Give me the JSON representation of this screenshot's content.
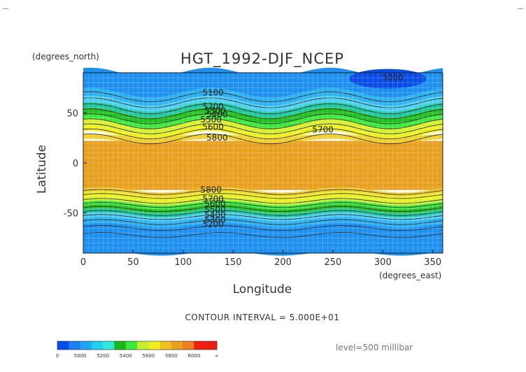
{
  "chart_data": {
    "type": "heatmap",
    "title": "HGT_1992-DJF_NCEP",
    "xlabel": "Longitude",
    "ylabel": "Latitude",
    "x_units": "(degrees_east)",
    "y_units": "(degrees_north)",
    "xlim": [
      0,
      360
    ],
    "ylim": [
      -90,
      90
    ],
    "x_ticks": [
      "0",
      "50",
      "100",
      "150",
      "200",
      "250",
      "300",
      "350"
    ],
    "y_ticks": [
      "50",
      "0",
      "-50"
    ],
    "grid": true,
    "footer": "CONTOUR INTERVAL = 5.000E+01",
    "level_label": "level=500 millibar",
    "contour_labels": [
      {
        "text": "5100",
        "lon": 130,
        "lat": 68
      },
      {
        "text": "5000",
        "lon": 310,
        "lat": 83
      },
      {
        "text": "5200",
        "lon": 130,
        "lat": 54
      },
      {
        "text": "5300",
        "lon": 132,
        "lat": 50
      },
      {
        "text": "5400",
        "lon": 134,
        "lat": 46
      },
      {
        "text": "5500",
        "lon": 128,
        "lat": 41
      },
      {
        "text": "5600",
        "lon": 130,
        "lat": 34
      },
      {
        "text": "5700",
        "lon": 240,
        "lat": 31
      },
      {
        "text": "5800",
        "lon": 134,
        "lat": 23
      },
      {
        "text": "5800",
        "lon": 128,
        "lat": -29
      },
      {
        "text": "5700",
        "lon": 130,
        "lat": -38
      },
      {
        "text": "5600",
        "lon": 132,
        "lat": -43
      },
      {
        "text": "5500",
        "lon": 132,
        "lat": -49
      },
      {
        "text": "5400",
        "lon": 132,
        "lat": -54
      },
      {
        "text": "5300",
        "lon": 132,
        "lat": -59
      },
      {
        "text": "5200",
        "lon": 130,
        "lat": -63
      }
    ],
    "colorbar": {
      "ticks": [
        "0",
        "5000",
        "5200",
        "5400",
        "5600",
        "5800",
        "6000",
        "∞"
      ],
      "colors": [
        "#0a4ce8",
        "#1d7ef2",
        "#1ea7f2",
        "#1ed0f2",
        "#2fe8d8",
        "#1ab81a",
        "#3ee83e",
        "#c0f030",
        "#f0f020",
        "#f0c020",
        "#e8a020",
        "#f08020",
        "#f02010",
        "#f01c10"
      ]
    }
  }
}
